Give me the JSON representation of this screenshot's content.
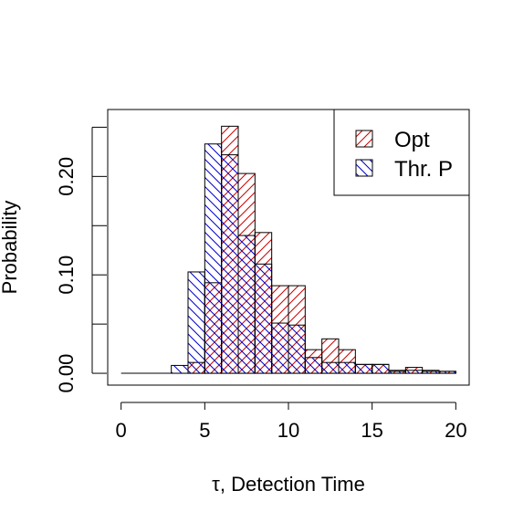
{
  "chart_data": {
    "type": "bar",
    "subtype": "overlaid-histogram",
    "title": "",
    "xlabel": "τ, Detection Time",
    "ylabel": "Probability",
    "xlim": [
      -0.8,
      20.8
    ],
    "ylim": [
      -0.012,
      0.268
    ],
    "xticks": [
      0,
      5,
      10,
      15,
      20
    ],
    "yticks": [
      0.0,
      0.05,
      0.1,
      0.15,
      0.2,
      0.25
    ],
    "ytick_labels": [
      "0.00",
      "",
      "0.10",
      "",
      "0.20",
      ""
    ],
    "bin_width": 1,
    "legend": {
      "position": "top-right"
    },
    "series": [
      {
        "name": "Opt",
        "color": "#cc0000",
        "hatch": "forward",
        "bins": [
          {
            "x0": 0,
            "value": 0.0
          },
          {
            "x0": 1,
            "value": 0.0
          },
          {
            "x0": 2,
            "value": 0.0
          },
          {
            "x0": 3,
            "value": 0.0
          },
          {
            "x0": 4,
            "value": 0.011
          },
          {
            "x0": 5,
            "value": 0.092
          },
          {
            "x0": 6,
            "value": 0.251
          },
          {
            "x0": 7,
            "value": 0.203
          },
          {
            "x0": 8,
            "value": 0.143
          },
          {
            "x0": 9,
            "value": 0.089
          },
          {
            "x0": 10,
            "value": 0.089
          },
          {
            "x0": 11,
            "value": 0.024
          },
          {
            "x0": 12,
            "value": 0.035
          },
          {
            "x0": 13,
            "value": 0.024
          },
          {
            "x0": 14,
            "value": 0.009
          },
          {
            "x0": 15,
            "value": 0.009
          },
          {
            "x0": 16,
            "value": 0.003
          },
          {
            "x0": 17,
            "value": 0.006
          },
          {
            "x0": 18,
            "value": 0.003
          },
          {
            "x0": 19,
            "value": 0.002
          }
        ]
      },
      {
        "name": "Thr. P",
        "color": "#0000cc",
        "hatch": "back",
        "bins": [
          {
            "x0": 0,
            "value": 0.0
          },
          {
            "x0": 1,
            "value": 0.0
          },
          {
            "x0": 2,
            "value": 0.0
          },
          {
            "x0": 3,
            "value": 0.008
          },
          {
            "x0": 4,
            "value": 0.103
          },
          {
            "x0": 5,
            "value": 0.233
          },
          {
            "x0": 6,
            "value": 0.222
          },
          {
            "x0": 7,
            "value": 0.14
          },
          {
            "x0": 8,
            "value": 0.111
          },
          {
            "x0": 9,
            "value": 0.051
          },
          {
            "x0": 10,
            "value": 0.049
          },
          {
            "x0": 11,
            "value": 0.016
          },
          {
            "x0": 12,
            "value": 0.011
          },
          {
            "x0": 13,
            "value": 0.011
          },
          {
            "x0": 14,
            "value": 0.009
          },
          {
            "x0": 15,
            "value": 0.009
          },
          {
            "x0": 16,
            "value": 0.002
          },
          {
            "x0": 17,
            "value": 0.003
          },
          {
            "x0": 18,
            "value": 0.002
          },
          {
            "x0": 19,
            "value": 0.002
          }
        ]
      }
    ]
  }
}
